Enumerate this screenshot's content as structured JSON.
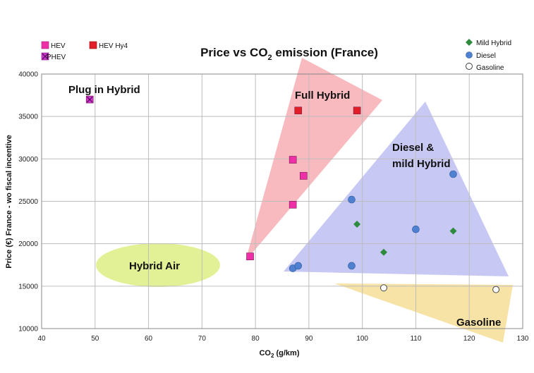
{
  "chart_data": {
    "type": "scatter",
    "title_main": "Price vs CO",
    "title_sub": "2",
    "title_end": " emission (France)",
    "xlabel_main": "CO",
    "xlabel_sub": "2",
    "xlabel_end": " (g/km)",
    "ylabel": "Price (€) France - wo fiscal incentive",
    "xlim": [
      40,
      130
    ],
    "ylim": [
      10000,
      40000
    ],
    "xticks": [
      40,
      50,
      60,
      70,
      80,
      90,
      100,
      110,
      120,
      130
    ],
    "yticks": [
      10000,
      15000,
      20000,
      25000,
      30000,
      35000,
      40000
    ],
    "grid": true,
    "series": [
      {
        "name": "HEV",
        "marker": "square",
        "color": "#ee2fa8",
        "points": [
          [
            79,
            18500
          ],
          [
            87,
            24600
          ],
          [
            87,
            29900
          ],
          [
            89,
            28000
          ]
        ]
      },
      {
        "name": "PHEV",
        "marker": "square-x",
        "color": "#cc33cc",
        "points": [
          [
            49,
            37000
          ]
        ]
      },
      {
        "name": "HEV Hy4",
        "marker": "square",
        "color": "#e21f26",
        "points": [
          [
            88,
            35700
          ],
          [
            99,
            35700
          ]
        ]
      },
      {
        "name": "Mild Hybrid",
        "marker": "diamond",
        "color": "#2e8b3e",
        "points": [
          [
            99,
            22300
          ],
          [
            104,
            19000
          ],
          [
            117,
            21500
          ]
        ]
      },
      {
        "name": "Diesel",
        "marker": "circle",
        "color": "#4f81d0",
        "points": [
          [
            87,
            17100
          ],
          [
            88,
            17400
          ],
          [
            98,
            25200
          ],
          [
            98,
            17400
          ],
          [
            110,
            21700
          ],
          [
            117,
            28200
          ]
        ]
      },
      {
        "name": "Gasoline",
        "marker": "open-circle",
        "color": "#777777",
        "points": [
          [
            104,
            14800
          ],
          [
            125,
            14600
          ]
        ]
      }
    ],
    "regions": [
      {
        "label": "Full Hybrid",
        "color": "#f5a3a8"
      },
      {
        "label": "Diesel &",
        "label2": "mild Hybrid",
        "color": "#b5b5f2"
      },
      {
        "label": "Gasoline",
        "color": "#f6d98a"
      },
      {
        "label": "Hybrid Air",
        "color": "#dff08a"
      }
    ],
    "annotations": [
      {
        "label": "Plug in Hybrid"
      }
    ],
    "legend_placement": "top-left and top-right"
  }
}
